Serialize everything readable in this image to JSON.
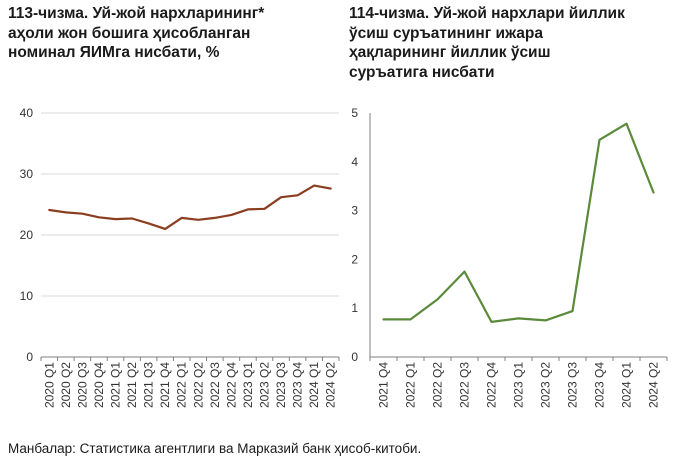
{
  "chart_data": [
    {
      "type": "line",
      "title_lines": [
        "113-чизма. Уй-жой нархларининг*",
        "аҳоли жон бошига ҳисобланган",
        "номинал ЯИМга нисбати, %"
      ],
      "categories": [
        "2020 Q1",
        "2020 Q2",
        "2020 Q3",
        "2020 Q4",
        "2021 Q1",
        "2021 Q2",
        "2021 Q3",
        "2021 Q4",
        "2022 Q1",
        "2022 Q2",
        "2022 Q3",
        "2022 Q4",
        "2023 Q1",
        "2023 Q2",
        "2023 Q3",
        "2023 Q4",
        "2024 Q1",
        "2024 Q2"
      ],
      "values": [
        24.1,
        23.7,
        23.5,
        22.9,
        22.6,
        22.7,
        21.9,
        21.0,
        22.8,
        22.5,
        22.8,
        23.3,
        24.2,
        24.3,
        26.2,
        26.5,
        28.1,
        27.6
      ],
      "yticks": [
        "0",
        "10",
        "20",
        "30",
        "40"
      ],
      "ylim": [
        0,
        40
      ],
      "grid": true,
      "color": "#8b3d1f"
    },
    {
      "type": "line",
      "title_lines": [
        "114-чизма. Уй-жой нархлари йиллик",
        "ўсиш суръатининг ижара",
        "ҳақларининг йиллик ўсиш",
        "суръатига нисбати"
      ],
      "categories": [
        "2021 Q4",
        "2022 Q1",
        "2022 Q2",
        "2022 Q3",
        "2022 Q4",
        "2023 Q1",
        "2023 Q2",
        "2023 Q3",
        "2023 Q4",
        "2024 Q1",
        "2024 Q2"
      ],
      "values": [
        0.77,
        0.77,
        1.18,
        1.75,
        0.72,
        0.79,
        0.75,
        0.94,
        4.45,
        4.78,
        3.37
      ],
      "yticks": [
        "0",
        "1",
        "2",
        "3",
        "4",
        "5"
      ],
      "ylim": [
        0,
        5
      ],
      "grid": false,
      "color": "#5a8a3a"
    }
  ],
  "source": "Манбалар: Статистика агентлиги ва Марказий банк ҳисоб-китоби."
}
